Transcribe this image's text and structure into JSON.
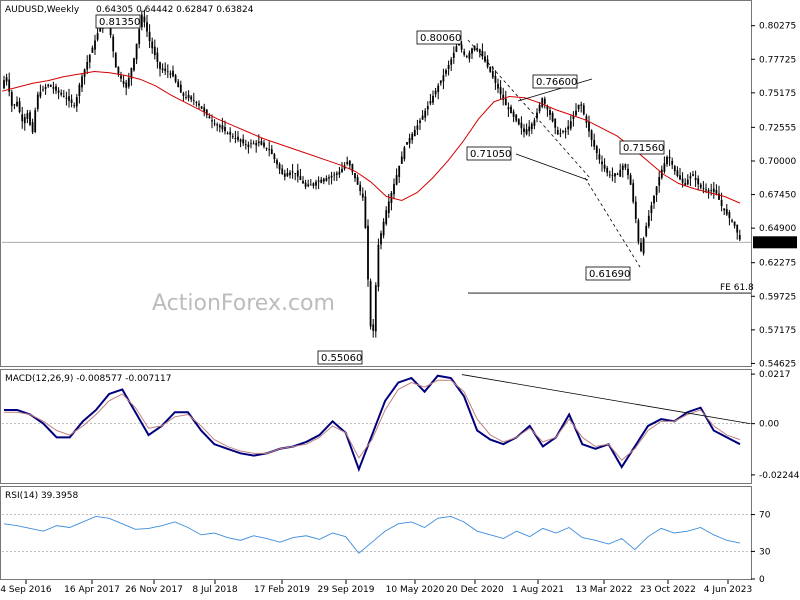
{
  "chart_data": [
    {
      "type": "candlestick",
      "title": "AUDUSD,Weekly",
      "ohlc_text": "0.64305 0.64442 0.62847 0.63824",
      "current_price": "0.63824",
      "ylim": [
        0.5443,
        0.8215
      ],
      "y_ticks": [
        "0.80275",
        "0.77725",
        "0.75175",
        "0.72555",
        "0.70000",
        "0.67450",
        "0.64900",
        "0.62275",
        "0.59725",
        "0.57175",
        "0.54625"
      ],
      "x_ticks": [
        "4 Sep 2016",
        "16 Apr 2017",
        "26 Nov 2017",
        "8 Jul 2018",
        "17 Feb 2019",
        "29 Sep 2019",
        "10 May 2020",
        "20 Dec 2020",
        "1 Aug 2021",
        "13 Mar 2022",
        "23 Oct 2022",
        "4 Jun 2023"
      ],
      "series": [
        {
          "name": "",
          "type": "line",
          "color": "#d40000",
          "values": [
            0.753,
            0.756,
            0.759,
            0.761,
            0.764,
            0.766,
            0.768,
            0.767,
            0.765,
            0.762,
            0.757,
            0.75,
            0.744,
            0.738,
            0.732,
            0.727,
            0.722,
            0.717,
            0.713,
            0.709,
            0.705,
            0.701,
            0.697,
            0.692,
            0.684,
            0.673,
            0.67,
            0.676,
            0.687,
            0.7,
            0.715,
            0.732,
            0.745,
            0.749,
            0.748,
            0.744,
            0.739,
            0.735,
            0.731,
            0.725,
            0.719,
            0.71,
            0.7,
            0.69,
            0.683,
            0.679,
            0.676,
            0.673,
            0.668
          ]
        }
      ],
      "levels": [
        {
          "label": "FE 61.8",
          "value": 0.5997
        },
        {
          "label": "",
          "value": 0.63824
        }
      ],
      "annotations": [
        {
          "label": "0.81350",
          "value": 0.8135
        },
        {
          "label": "0.80060",
          "value": 0.8006
        },
        {
          "label": "0.76600",
          "value": 0.766
        },
        {
          "label": "0.71560",
          "value": 0.7156
        },
        {
          "label": "0.71050",
          "value": 0.7105
        },
        {
          "label": "0.61690",
          "value": 0.6169
        },
        {
          "label": "0.55060",
          "value": 0.5506
        }
      ],
      "watermark": "ActionForex.com",
      "colors": {
        "candles": "#000000",
        "ma": "#d40000",
        "grid": "#b4b4b4"
      }
    },
    {
      "type": "line",
      "title": "MACD(12,26,9) -0.008577 -0.007117",
      "ylim": [
        -0.026,
        0.0235
      ],
      "y_ticks": [
        "0.0217",
        "0.00",
        "-0.022445"
      ],
      "series": [
        {
          "name": "",
          "color": "#00007f",
          "values": [
            0.006,
            0.006,
            0.004,
            0.0,
            -0.006,
            -0.006,
            0.001,
            0.006,
            0.013,
            0.015,
            0.005,
            -0.005,
            -0.001,
            0.005,
            0.005,
            -0.003,
            -0.009,
            -0.011,
            -0.013,
            -0.014,
            -0.013,
            -0.011,
            -0.01,
            -0.008,
            -0.005,
            0.001,
            -0.004,
            -0.02,
            -0.005,
            0.01,
            0.018,
            0.02,
            0.014,
            0.021,
            0.02,
            0.012,
            -0.003,
            -0.007,
            -0.009,
            -0.006,
            -0.001,
            -0.01,
            -0.006,
            0.004,
            -0.009,
            -0.011,
            -0.009,
            -0.019,
            -0.01,
            -0.001,
            0.002,
            0.001,
            0.005,
            0.007,
            -0.003,
            -0.006,
            -0.009
          ]
        },
        {
          "name": "",
          "color": "#c08080",
          "values": [
            0.005,
            0.005,
            0.004,
            0.001,
            -0.003,
            -0.005,
            -0.001,
            0.004,
            0.01,
            0.013,
            0.007,
            -0.002,
            -0.001,
            0.003,
            0.004,
            -0.001,
            -0.007,
            -0.01,
            -0.012,
            -0.013,
            -0.013,
            -0.011,
            -0.01,
            -0.009,
            -0.006,
            -0.001,
            -0.004,
            -0.015,
            -0.007,
            0.006,
            0.015,
            0.018,
            0.016,
            0.019,
            0.019,
            0.014,
            0.002,
            -0.005,
            -0.008,
            -0.006,
            -0.002,
            -0.008,
            -0.006,
            0.002,
            -0.006,
            -0.01,
            -0.009,
            -0.016,
            -0.011,
            -0.003,
            0.001,
            0.001,
            0.004,
            0.006,
            -0.001,
            -0.005,
            -0.007
          ]
        }
      ],
      "trendline": {
        "from": 0.0215,
        "to": 0.0
      },
      "zero_line": 0.0
    },
    {
      "type": "line",
      "title": "RSI(14) 39.3958",
      "ylim": [
        0,
        100
      ],
      "y_ticks": [
        "70",
        "30",
        "0"
      ],
      "levels": [
        70,
        30
      ],
      "series": [
        {
          "name": "",
          "color": "#3c8cdc",
          "values": [
            60,
            58,
            55,
            52,
            58,
            56,
            62,
            68,
            66,
            60,
            54,
            55,
            58,
            62,
            56,
            48,
            50,
            45,
            42,
            47,
            44,
            40,
            45,
            47,
            43,
            50,
            46,
            28,
            40,
            52,
            60,
            62,
            56,
            66,
            68,
            62,
            52,
            48,
            44,
            52,
            46,
            55,
            50,
            56,
            45,
            42,
            38,
            44,
            32,
            46,
            55,
            50,
            52,
            56,
            48,
            42,
            39
          ]
        }
      ]
    }
  ]
}
